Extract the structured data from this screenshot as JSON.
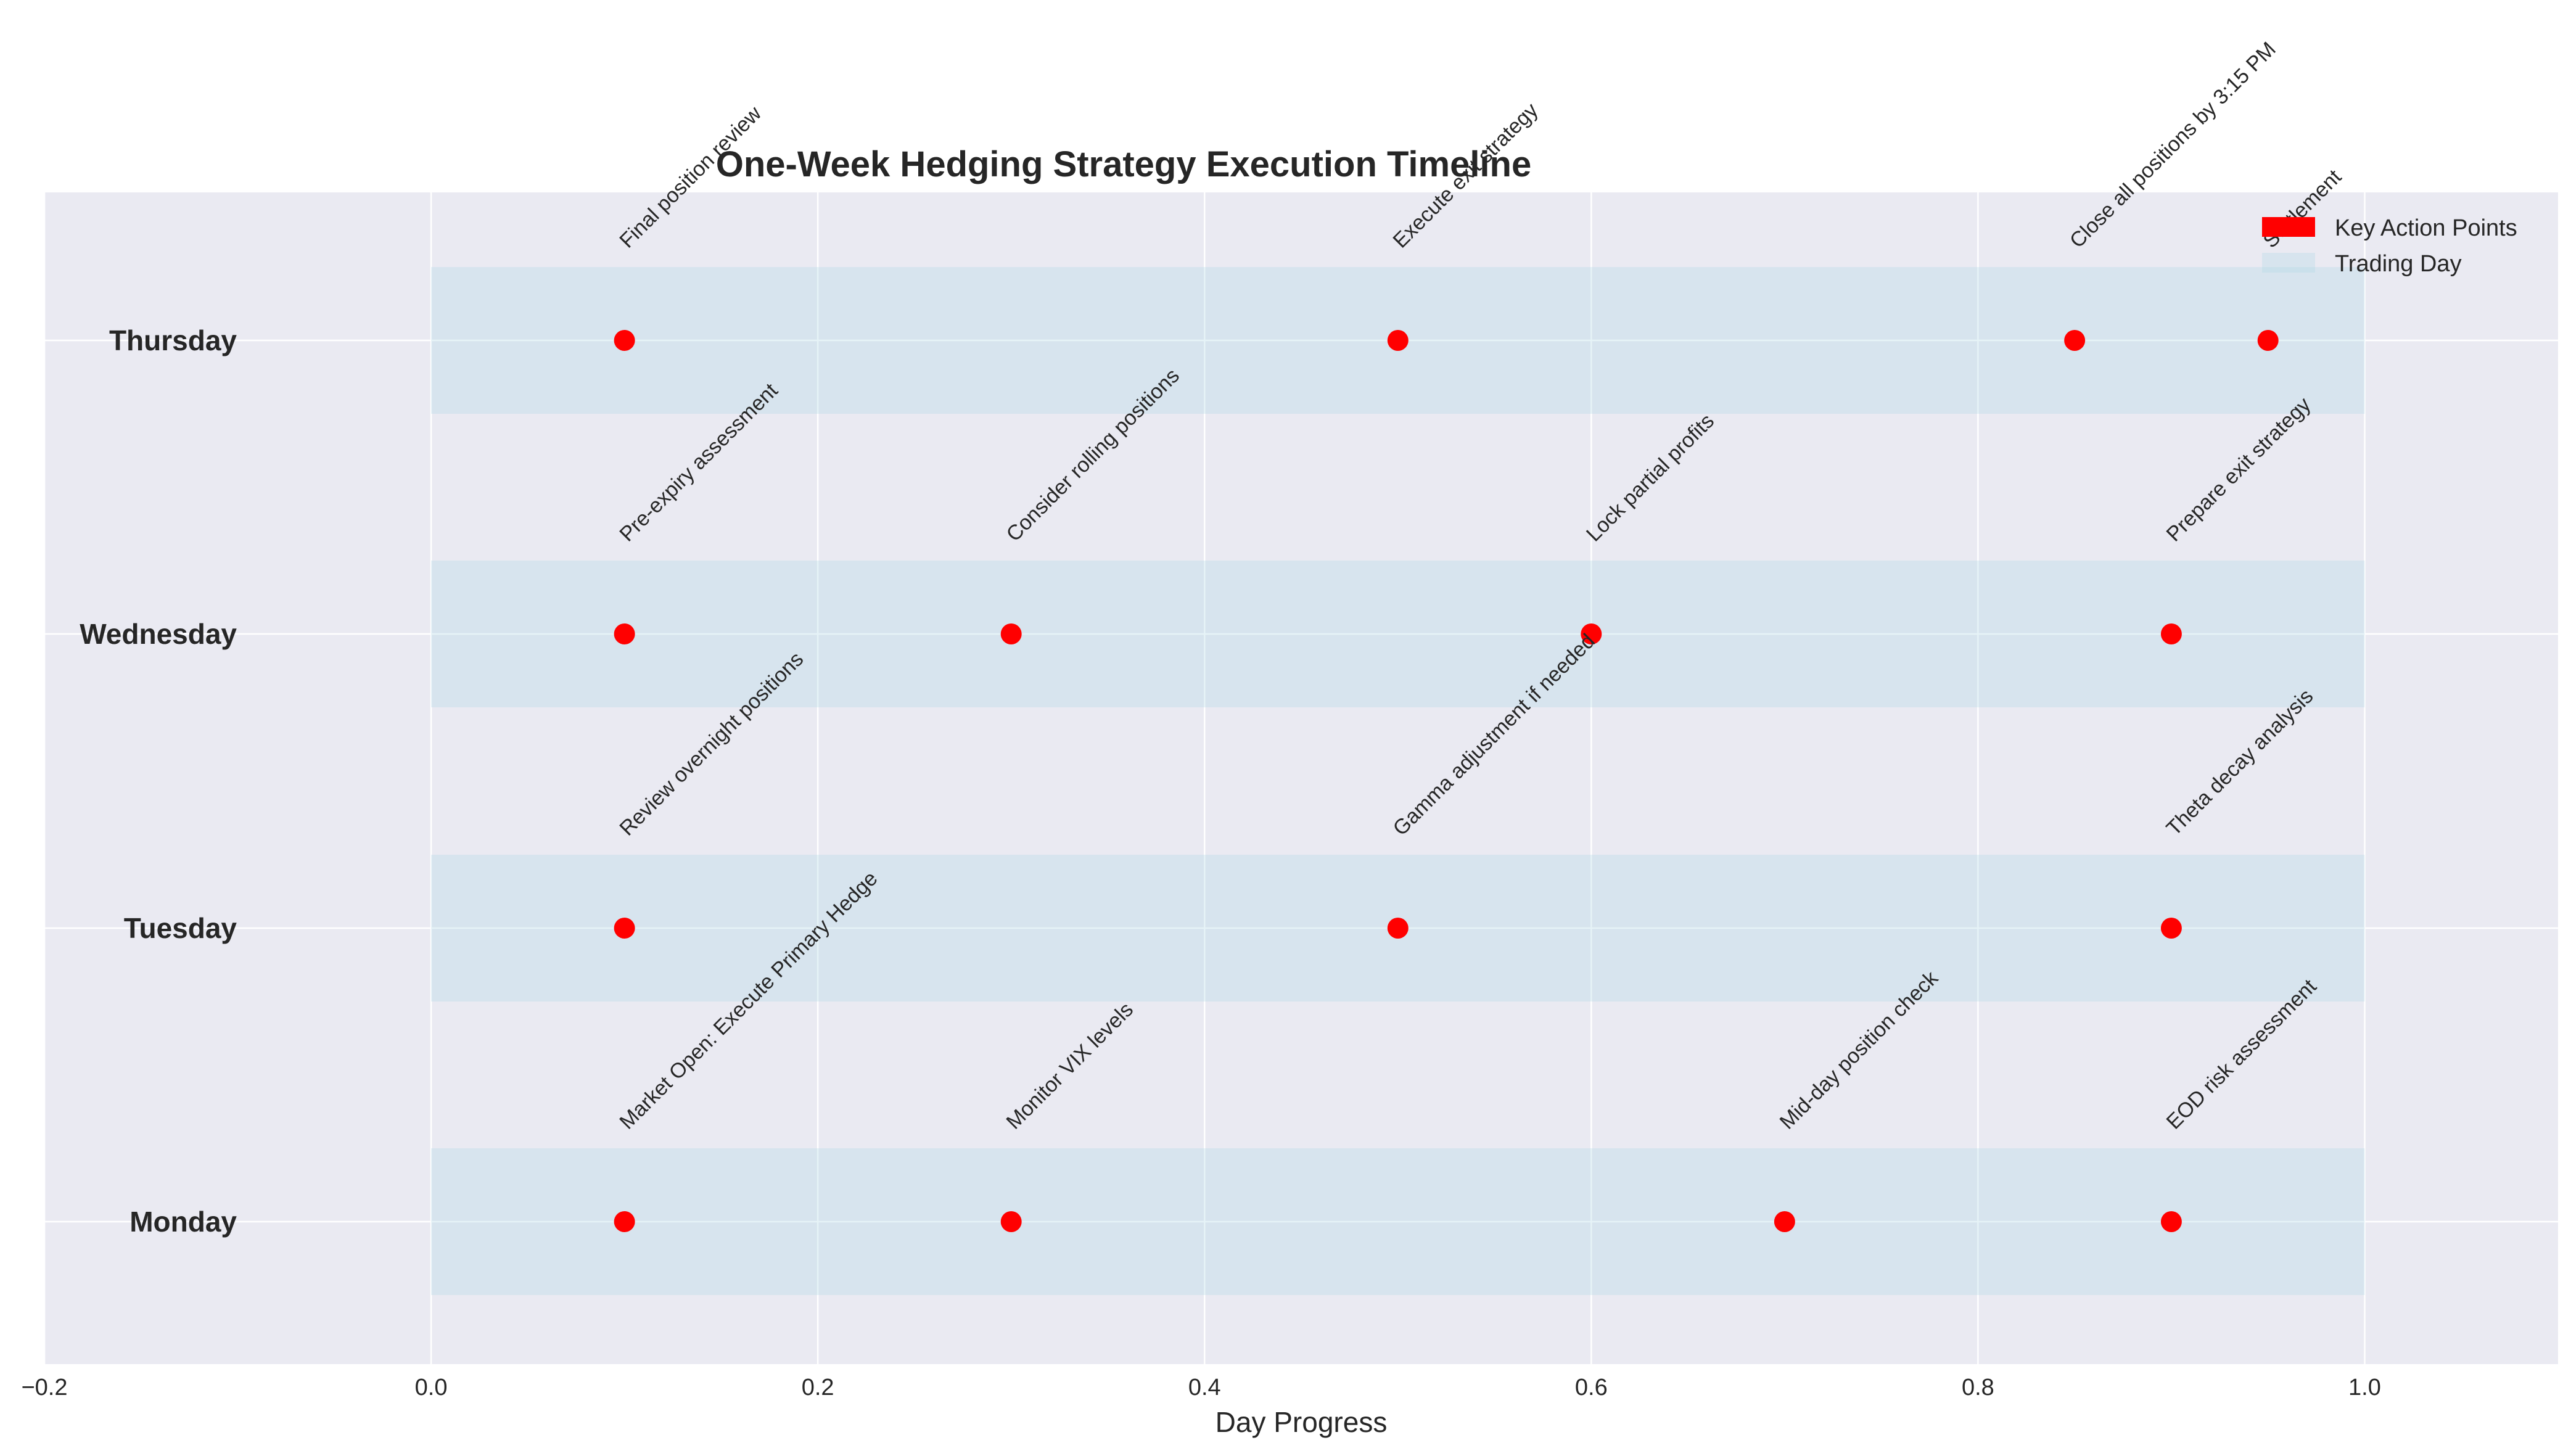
{
  "chart_data": {
    "type": "scatter",
    "title": "One-Week Hedging Strategy Execution Timeline",
    "xlabel": "Day Progress",
    "ylabel": "",
    "xlim": [
      -0.2,
      1.1
    ],
    "x_ticks": [
      "−0.2",
      "0.0",
      "0.2",
      "0.4",
      "0.6",
      "0.8",
      "1.0"
    ],
    "categories": [
      "Monday",
      "Tuesday",
      "Wednesday",
      "Thursday"
    ],
    "trading_day_span": [
      0.0,
      1.0
    ],
    "grid": true,
    "legend_position": "top-right",
    "legend": [
      {
        "label": "Key Action Points",
        "color": "#ff0000"
      },
      {
        "label": "Trading Day",
        "color": "#add8e6"
      }
    ],
    "events": [
      {
        "day": "Monday",
        "x": 0.1,
        "label": "Market Open: Execute Primary Hedge"
      },
      {
        "day": "Monday",
        "x": 0.3,
        "label": "Monitor VIX levels"
      },
      {
        "day": "Monday",
        "x": 0.7,
        "label": "Mid-day position check"
      },
      {
        "day": "Monday",
        "x": 0.9,
        "label": "EOD risk assessment"
      },
      {
        "day": "Tuesday",
        "x": 0.1,
        "label": "Review overnight positions"
      },
      {
        "day": "Tuesday",
        "x": 0.5,
        "label": "Gamma adjustment if needed"
      },
      {
        "day": "Tuesday",
        "x": 0.9,
        "label": "Theta decay analysis"
      },
      {
        "day": "Wednesday",
        "x": 0.1,
        "label": "Pre-expiry assessment"
      },
      {
        "day": "Wednesday",
        "x": 0.3,
        "label": "Consider rolling positions"
      },
      {
        "day": "Wednesday",
        "x": 0.6,
        "label": "Lock partial profits"
      },
      {
        "day": "Wednesday",
        "x": 0.9,
        "label": "Prepare exit strategy"
      },
      {
        "day": "Thursday",
        "x": 0.1,
        "label": "Final position review"
      },
      {
        "day": "Thursday",
        "x": 0.5,
        "label": "Execute exit strategy"
      },
      {
        "day": "Thursday",
        "x": 0.85,
        "label": "Close all positions by 3:15 PM"
      },
      {
        "day": "Thursday",
        "x": 0.95,
        "label": "Settlement"
      }
    ],
    "colors": {
      "point": "#ff0000",
      "band": "#add8e6",
      "background": "#eaeaf2",
      "grid": "#ffffff"
    }
  }
}
